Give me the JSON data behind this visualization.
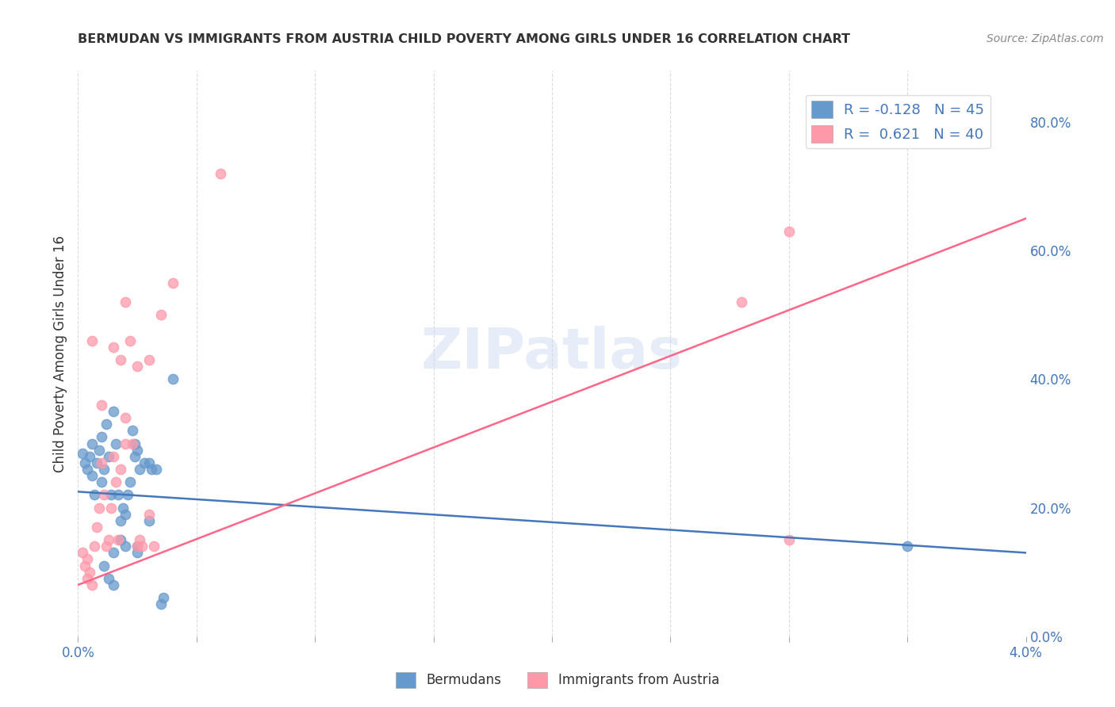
{
  "title": "BERMUDAN VS IMMIGRANTS FROM AUSTRIA CHILD POVERTY AMONG GIRLS UNDER 16 CORRELATION CHART",
  "source": "Source: ZipAtlas.com",
  "ylabel": "Child Poverty Among Girls Under 16",
  "xlim": [
    0.0,
    0.04
  ],
  "ylim": [
    0.0,
    0.88
  ],
  "right_yticks": [
    0.0,
    0.2,
    0.4,
    0.6,
    0.8
  ],
  "right_yticklabels": [
    "0.0%",
    "20.0%",
    "40.0%",
    "60.0%",
    "80.0%"
  ],
  "xticks": [
    0.0,
    0.005,
    0.01,
    0.015,
    0.02,
    0.025,
    0.03,
    0.035,
    0.04
  ],
  "blue_color": "#6699CC",
  "pink_color": "#FF99AA",
  "blue_line_color": "#4477BB",
  "pink_line_color": "#FF6688",
  "title_color": "#333333",
  "source_color": "#888888",
  "blue_scatter": [
    [
      0.0002,
      0.285
    ],
    [
      0.0003,
      0.27
    ],
    [
      0.0004,
      0.26
    ],
    [
      0.0005,
      0.28
    ],
    [
      0.0006,
      0.25
    ],
    [
      0.0006,
      0.3
    ],
    [
      0.0007,
      0.22
    ],
    [
      0.0008,
      0.27
    ],
    [
      0.0009,
      0.29
    ],
    [
      0.001,
      0.24
    ],
    [
      0.001,
      0.31
    ],
    [
      0.0011,
      0.26
    ],
    [
      0.0012,
      0.33
    ],
    [
      0.0013,
      0.28
    ],
    [
      0.0014,
      0.22
    ],
    [
      0.0015,
      0.35
    ],
    [
      0.0016,
      0.3
    ],
    [
      0.0017,
      0.22
    ],
    [
      0.0018,
      0.18
    ],
    [
      0.0019,
      0.2
    ],
    [
      0.002,
      0.19
    ],
    [
      0.0021,
      0.22
    ],
    [
      0.0022,
      0.24
    ],
    [
      0.0023,
      0.32
    ],
    [
      0.0024,
      0.3
    ],
    [
      0.0024,
      0.28
    ],
    [
      0.0025,
      0.29
    ],
    [
      0.0026,
      0.26
    ],
    [
      0.0028,
      0.27
    ],
    [
      0.003,
      0.27
    ],
    [
      0.0031,
      0.26
    ],
    [
      0.0033,
      0.26
    ],
    [
      0.0035,
      0.05
    ],
    [
      0.0036,
      0.06
    ],
    [
      0.004,
      0.4
    ],
    [
      0.0011,
      0.11
    ],
    [
      0.0013,
      0.09
    ],
    [
      0.0015,
      0.13
    ],
    [
      0.0018,
      0.15
    ],
    [
      0.002,
      0.14
    ],
    [
      0.0025,
      0.14
    ],
    [
      0.0025,
      0.13
    ],
    [
      0.003,
      0.18
    ],
    [
      0.035,
      0.14
    ],
    [
      0.0015,
      0.08
    ]
  ],
  "pink_scatter": [
    [
      0.0002,
      0.13
    ],
    [
      0.0003,
      0.11
    ],
    [
      0.0004,
      0.12
    ],
    [
      0.0004,
      0.09
    ],
    [
      0.0005,
      0.1
    ],
    [
      0.0006,
      0.08
    ],
    [
      0.0007,
      0.14
    ],
    [
      0.0008,
      0.17
    ],
    [
      0.0009,
      0.2
    ],
    [
      0.001,
      0.27
    ],
    [
      0.0011,
      0.22
    ],
    [
      0.0012,
      0.14
    ],
    [
      0.0013,
      0.15
    ],
    [
      0.0014,
      0.2
    ],
    [
      0.0015,
      0.28
    ],
    [
      0.0016,
      0.24
    ],
    [
      0.0017,
      0.15
    ],
    [
      0.0018,
      0.26
    ],
    [
      0.0018,
      0.43
    ],
    [
      0.002,
      0.3
    ],
    [
      0.0022,
      0.46
    ],
    [
      0.0023,
      0.3
    ],
    [
      0.0025,
      0.14
    ],
    [
      0.0026,
      0.15
    ],
    [
      0.0027,
      0.14
    ],
    [
      0.003,
      0.19
    ],
    [
      0.0032,
      0.14
    ],
    [
      0.0035,
      0.5
    ],
    [
      0.004,
      0.55
    ],
    [
      0.0015,
      0.45
    ],
    [
      0.002,
      0.52
    ],
    [
      0.0025,
      0.42
    ],
    [
      0.003,
      0.43
    ],
    [
      0.002,
      0.34
    ],
    [
      0.001,
      0.36
    ],
    [
      0.0006,
      0.46
    ],
    [
      0.028,
      0.52
    ],
    [
      0.03,
      0.15
    ],
    [
      0.006,
      0.72
    ],
    [
      0.03,
      0.63
    ]
  ],
  "blue_trendline": [
    0.0,
    0.225,
    0.04,
    0.13
  ],
  "pink_trendline": [
    0.0,
    0.08,
    0.04,
    0.65
  ],
  "background_color": "#ffffff",
  "grid_color": "#cccccc"
}
